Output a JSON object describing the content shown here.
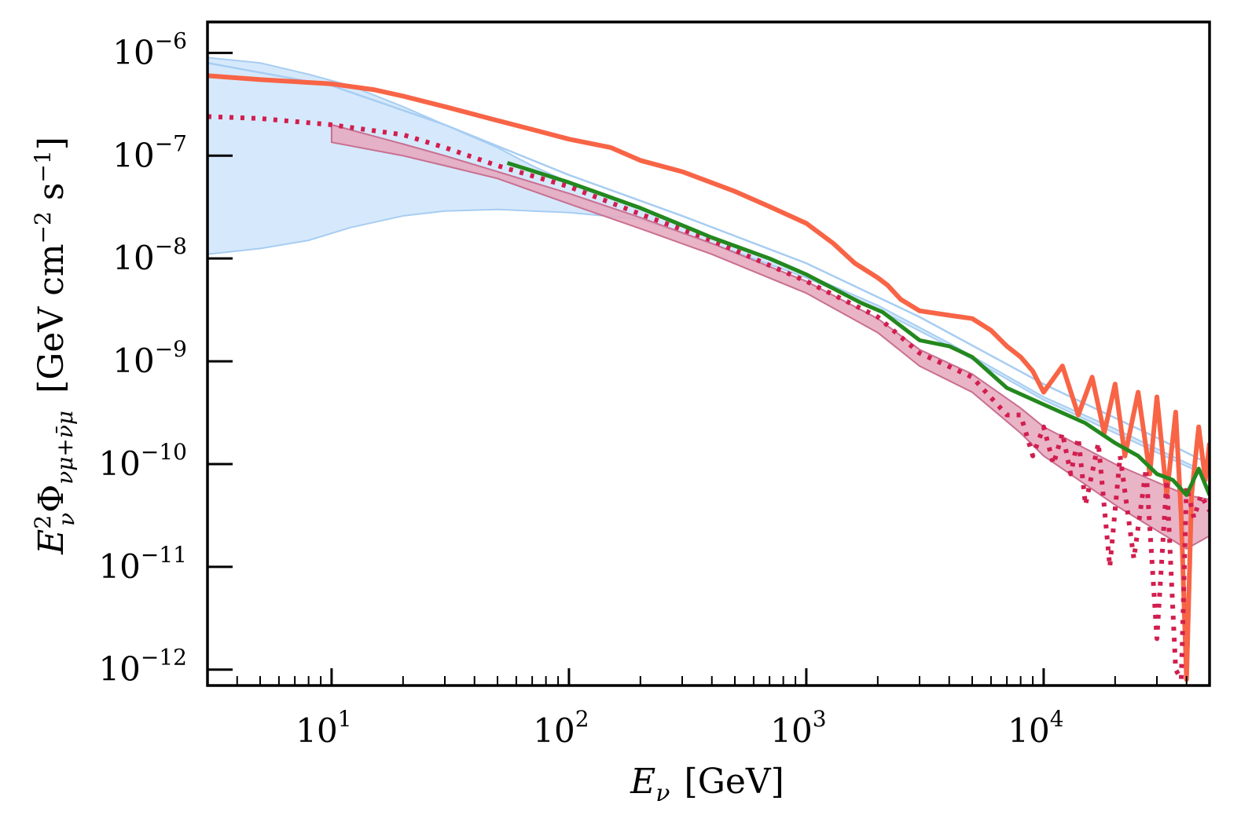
{
  "chart_data": {
    "type": "line",
    "title": "",
    "xscale": "log",
    "yscale": "log",
    "xlim": [
      3.0,
      50000
    ],
    "ylim": [
      7e-13,
      2e-06
    ],
    "xlabel": {
      "symbol": "E",
      "sub": "ν",
      "unit": "[GeV]"
    },
    "ylabel": {
      "symbol": "E",
      "sup": "2",
      "sub": "ν",
      "Phi": "Φ",
      "phi_sub": "νμ+ν̄μ",
      "unit_open": "[GeV cm",
      "unit_exp1": "−2",
      "unit_mid": " s",
      "unit_exp2": "−1",
      "unit_close": "]"
    },
    "xticks": [
      {
        "value": 10,
        "base": "10",
        "exp": "1"
      },
      {
        "value": 100,
        "base": "10",
        "exp": "2"
      },
      {
        "value": 1000,
        "base": "10",
        "exp": "3"
      },
      {
        "value": 10000,
        "base": "10",
        "exp": "4"
      }
    ],
    "yticks": [
      {
        "value": 1e-06,
        "base": "10",
        "exp": "−6"
      },
      {
        "value": 1e-07,
        "base": "10",
        "exp": "−7"
      },
      {
        "value": 1e-08,
        "base": "10",
        "exp": "−8"
      },
      {
        "value": 1e-09,
        "base": "10",
        "exp": "−9"
      },
      {
        "value": 1e-10,
        "base": "10",
        "exp": "−10"
      },
      {
        "value": 1e-11,
        "base": "10",
        "exp": "−11"
      },
      {
        "value": 1e-12,
        "base": "10",
        "exp": "−12"
      }
    ],
    "bands": [
      {
        "name": "blue band",
        "color": "#cfe5fb",
        "edge": "#a7cdf2",
        "x": [
          3,
          5,
          8,
          12,
          20,
          30,
          50,
          70,
          100,
          200,
          400,
          1000,
          2000,
          4000,
          10000,
          20000,
          50000
        ],
        "upper": [
          9e-07,
          8e-07,
          6.2e-07,
          4.8e-07,
          3e-07,
          2e-07,
          1.2e-07,
          8e-08,
          5.5e-08,
          3e-08,
          1.6e-08,
          7e-09,
          3.5e-09,
          1.5e-09,
          4.5e-10,
          2.2e-10,
          8e-11
        ],
        "lower": [
          1.1e-08,
          1.25e-08,
          1.5e-08,
          2e-08,
          2.6e-08,
          2.9e-08,
          3e-08,
          2.9e-08,
          2.8e-08,
          2.4e-08,
          1.4e-08,
          6.5e-09,
          3.2e-09,
          1.4e-09,
          4.2e-10,
          2e-10,
          7.5e-11
        ]
      },
      {
        "name": "crimson band",
        "color": "#e6a7bd",
        "edge": "#c96f90",
        "x": [
          10,
          20,
          30,
          50,
          100,
          200,
          400,
          1000,
          2000,
          3000,
          5000,
          8000,
          10000,
          20000,
          40000,
          50000
        ],
        "upper": [
          2e-07,
          1.3e-07,
          1e-07,
          7e-08,
          4.3e-08,
          2.5e-08,
          1.4e-08,
          6e-09,
          2.6e-09,
          1.3e-09,
          7.5e-10,
          3.5e-10,
          2.3e-10,
          1e-10,
          5e-11,
          4.5e-11
        ],
        "lower": [
          1.35e-07,
          1e-07,
          8e-08,
          6e-08,
          3.4e-08,
          1.95e-08,
          1.1e-08,
          4.6e-09,
          1.9e-09,
          9e-10,
          5e-10,
          2e-10,
          1.2e-10,
          4e-11,
          1.5e-11,
          2e-11
        ]
      }
    ],
    "series": [
      {
        "name": "light blue line",
        "color": "#a7cdf2",
        "width": 2.5,
        "style": "solid",
        "x": [
          3,
          10,
          30,
          100,
          300,
          1000,
          3000,
          10000,
          30000,
          50000
        ],
        "y": [
          8e-07,
          4.8e-07,
          2e-07,
          6.5e-08,
          2.6e-08,
          9e-09,
          2.7e-09,
          6e-10,
          1.8e-10,
          1e-10
        ]
      },
      {
        "name": "red solid",
        "color": "#f86446",
        "width": 6,
        "style": "solid",
        "x": [
          3,
          5,
          10,
          15,
          20,
          30,
          50,
          70,
          100,
          150,
          200,
          300,
          500,
          700,
          1000,
          1300,
          1600,
          2000,
          2200,
          2500,
          3000,
          4000,
          5000,
          6000,
          7000,
          8000,
          9000,
          10000,
          12000,
          14000,
          16000,
          18000,
          20000,
          22000,
          25000,
          28000,
          30000,
          33000,
          36000,
          38000,
          40000,
          42000,
          45000,
          48000,
          50000
        ],
        "y": [
          6e-07,
          5.5e-07,
          5e-07,
          4.4e-07,
          3.8e-07,
          3e-07,
          2.2e-07,
          1.8e-07,
          1.45e-07,
          1.2e-07,
          9e-08,
          7e-08,
          4.5e-08,
          3.2e-08,
          2.2e-08,
          1.4e-08,
          9e-09,
          6.5e-09,
          5.5e-09,
          4e-09,
          3.1e-09,
          2.8e-09,
          2.6e-09,
          2e-09,
          1.4e-09,
          1.1e-09,
          8e-10,
          5e-10,
          9e-10,
          3e-10,
          7e-10,
          2e-10,
          6e-10,
          1.2e-10,
          5e-10,
          8e-11,
          4.5e-10,
          5e-11,
          3.2e-10,
          3e-11,
          8e-13,
          5e-11,
          2.3e-10,
          7e-11,
          1.6e-10
        ]
      },
      {
        "name": "crimson dotted",
        "color": "#d21e4f",
        "width": 6,
        "style": "dotted",
        "x": [
          3,
          5,
          10,
          20,
          30,
          50,
          100,
          200,
          400,
          1000,
          2000,
          3000,
          5000,
          7000,
          8000,
          9000,
          10000,
          11000,
          12000,
          13000,
          14000,
          15000,
          17000,
          19000,
          21000,
          24000,
          27000,
          30000,
          33000,
          36000,
          38000,
          40000,
          43000,
          46000,
          50000
        ],
        "y": [
          2.4e-07,
          2.3e-07,
          2e-07,
          1.6e-07,
          1.2e-07,
          8e-08,
          5e-08,
          2.7e-08,
          1.5e-08,
          6e-09,
          2.7e-09,
          1.2e-09,
          7e-10,
          3e-10,
          3e-10,
          1.2e-10,
          2.3e-10,
          1e-10,
          2e-10,
          8e-11,
          1.8e-10,
          4e-11,
          1.6e-10,
          1e-11,
          1.2e-10,
          1.2e-11,
          9e-11,
          2e-12,
          7e-11,
          1e-12,
          8e-13,
          6e-11,
          3e-11,
          5e-11,
          3.5e-11
        ]
      },
      {
        "name": "green solid",
        "color": "#23881e",
        "width": 5,
        "style": "solid",
        "x": [
          55,
          100,
          200,
          400,
          700,
          1000,
          1700,
          2100,
          3000,
          4000,
          5000,
          7000,
          10000,
          15000,
          20000,
          25000,
          30000,
          35000,
          40000,
          45000,
          50000
        ],
        "y": [
          8.5e-08,
          5.5e-08,
          3.1e-08,
          1.6e-08,
          1e-08,
          7e-09,
          3.7e-09,
          3e-09,
          1.6e-09,
          1.4e-09,
          1.1e-09,
          5.5e-10,
          3.8e-10,
          2.5e-10,
          1.6e-10,
          1.2e-10,
          8e-11,
          7e-11,
          5e-11,
          9e-11,
          5e-11
        ]
      }
    ]
  }
}
